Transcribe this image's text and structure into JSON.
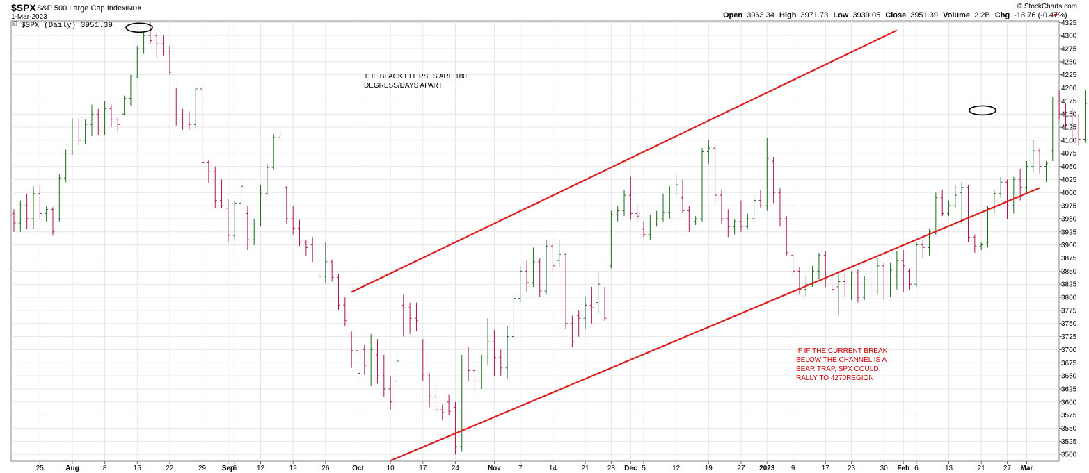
{
  "header": {
    "symbol": "$SPX",
    "name": "S&P 500 Large Cap Index",
    "exchange": "INDX",
    "date": "1-Mar-2023",
    "legend_label": "$SPX (Daily) 3951.39",
    "watermark": "© StockCharts.com",
    "open_label": "Open",
    "open_value": "3963.34",
    "high_label": "High",
    "high_value": "3971.73",
    "low_label": "Low",
    "low_value": "3939.05",
    "close_label": "Close",
    "close_value": "3951.39",
    "volume_label": "Volume",
    "volume_value": "2.2B",
    "chg_label": "Chg",
    "chg_value": "-18.76 (-0.47%)"
  },
  "chart_data": {
    "type": "bar",
    "style": "ohlc",
    "symbol": "$SPX",
    "period": "Daily",
    "up_color": "#1a6b1a",
    "down_color": "#b0124f",
    "ylim": [
      3487,
      4328
    ],
    "y_ticks": [
      3500,
      3525,
      3550,
      3575,
      3600,
      3625,
      3650,
      3675,
      3700,
      3725,
      3750,
      3775,
      3800,
      3825,
      3850,
      3875,
      3900,
      3925,
      3950,
      3975,
      4000,
      4025,
      4050,
      4075,
      4100,
      4125,
      4150,
      4175,
      4200,
      4225,
      4250,
      4275,
      4300,
      4325
    ],
    "x_tick_labels": [
      {
        "label": "25",
        "bar": 4,
        "bold": false
      },
      {
        "label": "Aug",
        "bar": 9,
        "bold": true
      },
      {
        "label": "8",
        "bar": 14,
        "bold": false
      },
      {
        "label": "15",
        "bar": 19,
        "bold": false
      },
      {
        "label": "22",
        "bar": 24,
        "bold": false
      },
      {
        "label": "29",
        "bar": 29,
        "bold": false
      },
      {
        "label": "Sep",
        "bar": 33,
        "bold": true
      },
      {
        "label": "6",
        "bar": 34,
        "bold": false
      },
      {
        "label": "12",
        "bar": 38,
        "bold": false
      },
      {
        "label": "19",
        "bar": 43,
        "bold": false
      },
      {
        "label": "26",
        "bar": 48,
        "bold": false
      },
      {
        "label": "Oct",
        "bar": 53,
        "bold": true
      },
      {
        "label": "10",
        "bar": 58,
        "bold": false
      },
      {
        "label": "17",
        "bar": 63,
        "bold": false
      },
      {
        "label": "24",
        "bar": 68,
        "bold": false
      },
      {
        "label": "Nov",
        "bar": 74,
        "bold": true
      },
      {
        "label": "7",
        "bar": 78,
        "bold": false
      },
      {
        "label": "14",
        "bar": 83,
        "bold": false
      },
      {
        "label": "21",
        "bar": 88,
        "bold": false
      },
      {
        "label": "28",
        "bar": 92,
        "bold": false
      },
      {
        "label": "Dec",
        "bar": 95,
        "bold": true
      },
      {
        "label": "5",
        "bar": 97,
        "bold": false
      },
      {
        "label": "12",
        "bar": 102,
        "bold": false
      },
      {
        "label": "19",
        "bar": 107,
        "bold": false
      },
      {
        "label": "27",
        "bar": 112,
        "bold": false
      },
      {
        "label": "2023",
        "bar": 116,
        "bold": true
      },
      {
        "label": "9",
        "bar": 120,
        "bold": false
      },
      {
        "label": "17",
        "bar": 125,
        "bold": false
      },
      {
        "label": "23",
        "bar": 129,
        "bold": false
      },
      {
        "label": "30",
        "bar": 134,
        "bold": false
      },
      {
        "label": "Feb",
        "bar": 137,
        "bold": true
      },
      {
        "label": "6",
        "bar": 139,
        "bold": false
      },
      {
        "label": "13",
        "bar": 144,
        "bold": false
      },
      {
        "label": "21",
        "bar": 149,
        "bold": false
      },
      {
        "label": "27",
        "bar": 153,
        "bold": false
      },
      {
        "label": "Mar",
        "bar": 156,
        "bold": true
      }
    ],
    "bars": [
      [
        3960,
        3968,
        3925,
        3942
      ],
      [
        3942,
        3985,
        3925,
        3975
      ],
      [
        3975,
        3998,
        3930,
        3950
      ],
      [
        3950,
        4012,
        3930,
        3998
      ],
      [
        3998,
        4015,
        3950,
        3960
      ],
      [
        3960,
        3975,
        3945,
        3968
      ],
      [
        3968,
        3972,
        3918,
        3925
      ],
      [
        3950,
        4035,
        3945,
        4028
      ],
      [
        4028,
        4082,
        4020,
        4075
      ],
      [
        4075,
        4142,
        4072,
        4135
      ],
      [
        4135,
        4140,
        4090,
        4100
      ],
      [
        4100,
        4140,
        4092,
        4130
      ],
      [
        4130,
        4168,
        4108,
        4150
      ],
      [
        4150,
        4160,
        4110,
        4118
      ],
      [
        4118,
        4175,
        4110,
        4160
      ],
      [
        4160,
        4168,
        4125,
        4140
      ],
      [
        4140,
        4145,
        4115,
        4130
      ],
      [
        4150,
        4185,
        4148,
        4180
      ],
      [
        4180,
        4225,
        4165,
        4222
      ],
      [
        4222,
        4280,
        4218,
        4275
      ],
      [
        4275,
        4305,
        4265,
        4300
      ],
      [
        4300,
        4325,
        4285,
        4290
      ],
      [
        4300,
        4305,
        4258,
        4284
      ],
      [
        4284,
        4300,
        4262,
        4270
      ],
      [
        4270,
        4280,
        4225,
        4230
      ],
      [
        4200,
        4200,
        4128,
        4140
      ],
      [
        4140,
        4160,
        4120,
        4135
      ],
      [
        4135,
        4155,
        4120,
        4130
      ],
      [
        4130,
        4200,
        4122,
        4198
      ],
      [
        4198,
        4202,
        4060,
        4058
      ],
      [
        4058,
        4062,
        4018,
        4040
      ],
      [
        4040,
        4050,
        3970,
        3985
      ],
      [
        3985,
        4025,
        3970,
        3975
      ],
      [
        3970,
        3988,
        3905,
        3918
      ],
      [
        3918,
        3985,
        3908,
        3980
      ],
      [
        3980,
        4022,
        3975,
        4012
      ],
      [
        3960,
        3975,
        3890,
        3910
      ],
      [
        3910,
        3950,
        3900,
        3940
      ],
      [
        3940,
        4015,
        3935,
        3998
      ],
      [
        3998,
        4055,
        3995,
        4048
      ],
      [
        4048,
        4112,
        4043,
        4105
      ],
      [
        4105,
        4125,
        4100,
        4110
      ],
      [
        4010,
        4012,
        3940,
        3950
      ],
      [
        3950,
        3975,
        3920,
        3932
      ],
      [
        3932,
        3948,
        3898,
        3905
      ],
      [
        3905,
        3910,
        3880,
        3895
      ],
      [
        3900,
        3915,
        3868,
        3875
      ],
      [
        3875,
        3895,
        3835,
        3840
      ],
      [
        3840,
        3905,
        3828,
        3868
      ],
      [
        3868,
        3872,
        3830,
        3838
      ],
      [
        3838,
        3845,
        3775,
        3785
      ],
      [
        3785,
        3800,
        3745,
        3756
      ],
      [
        3728,
        3735,
        3665,
        3698
      ],
      [
        3698,
        3720,
        3640,
        3655
      ],
      [
        3700,
        3710,
        3652,
        3670
      ],
      [
        3680,
        3730,
        3630,
        3700
      ],
      [
        3690,
        3720,
        3635,
        3650
      ],
      [
        3650,
        3690,
        3610,
        3625
      ],
      [
        3625,
        3650,
        3585,
        3600
      ],
      [
        3640,
        3695,
        3630,
        3678
      ],
      [
        3785,
        3805,
        3725,
        3780
      ],
      [
        3780,
        3790,
        3730,
        3760
      ],
      [
        3760,
        3790,
        3735,
        3755
      ],
      [
        3715,
        3720,
        3640,
        3650
      ],
      [
        3650,
        3655,
        3590,
        3610
      ],
      [
        3610,
        3640,
        3575,
        3585
      ],
      [
        3585,
        3595,
        3565,
        3580
      ],
      [
        3600,
        3615,
        3575,
        3582
      ],
      [
        3590,
        3600,
        3500,
        3515
      ],
      [
        3515,
        3690,
        3505,
        3680
      ],
      [
        3680,
        3705,
        3640,
        3660
      ],
      [
        3660,
        3670,
        3620,
        3640
      ],
      [
        3640,
        3690,
        3625,
        3680
      ],
      [
        3680,
        3760,
        3670,
        3715
      ],
      [
        3715,
        3738,
        3650,
        3685
      ],
      [
        3685,
        3700,
        3650,
        3665
      ],
      [
        3665,
        3745,
        3645,
        3725
      ],
      [
        3725,
        3805,
        3720,
        3798
      ],
      [
        3798,
        3860,
        3790,
        3850
      ],
      [
        3850,
        3870,
        3810,
        3828
      ],
      [
        3828,
        3895,
        3820,
        3868
      ],
      [
        3868,
        3875,
        3800,
        3812
      ],
      [
        3812,
        3910,
        3805,
        3898
      ],
      [
        3898,
        3905,
        3850,
        3860
      ],
      [
        3870,
        3910,
        3858,
        3882
      ],
      [
        3882,
        3885,
        3740,
        3750
      ],
      [
        3750,
        3765,
        3705,
        3715
      ],
      [
        3765,
        3775,
        3725,
        3760
      ],
      [
        3760,
        3800,
        3740,
        3785
      ],
      [
        3785,
        3820,
        3750,
        3780
      ],
      [
        3790,
        3850,
        3770,
        3825
      ],
      [
        3810,
        3820,
        3755,
        3760
      ],
      [
        3860,
        3965,
        3855,
        3958
      ],
      [
        3958,
        3975,
        3945,
        3965
      ],
      [
        3965,
        4005,
        3955,
        3995
      ],
      [
        3995,
        4030,
        3948,
        3960
      ],
      [
        3960,
        3975,
        3945,
        3955
      ],
      [
        3930,
        3945,
        3915,
        3920
      ],
      [
        3920,
        3958,
        3910,
        3940
      ],
      [
        3940,
        3965,
        3935,
        3950
      ],
      [
        3950,
        3998,
        3945,
        3962
      ],
      [
        3962,
        4012,
        3950,
        4005
      ],
      [
        4005,
        4035,
        3995,
        4015
      ],
      [
        3990,
        4025,
        3960,
        3965
      ],
      [
        3965,
        3975,
        3925,
        3940
      ],
      [
        3945,
        3955,
        3938,
        3950
      ],
      [
        3950,
        4085,
        3945,
        4078
      ],
      [
        4078,
        4100,
        4055,
        4085
      ],
      [
        4085,
        4090,
        3980,
        3995
      ],
      [
        3995,
        4005,
        3940,
        3950
      ],
      [
        3950,
        3968,
        3915,
        3935
      ],
      [
        3935,
        3950,
        3920,
        3945
      ],
      [
        3945,
        3985,
        3925,
        3935
      ],
      [
        3935,
        3960,
        3930,
        3950
      ],
      [
        3950,
        3995,
        3945,
        3985
      ],
      [
        3985,
        4005,
        3970,
        3975
      ],
      [
        3975,
        4105,
        3965,
        4065
      ],
      [
        4060,
        4068,
        3980,
        4000
      ],
      [
        4000,
        4008,
        3935,
        3950
      ],
      [
        3950,
        3955,
        3880,
        3885
      ],
      [
        3880,
        3885,
        3845,
        3850
      ],
      [
        3850,
        3858,
        3805,
        3815
      ],
      [
        3815,
        3840,
        3800,
        3825
      ],
      [
        3825,
        3860,
        3820,
        3850
      ],
      [
        3850,
        3885,
        3835,
        3880
      ],
      [
        3880,
        3888,
        3820,
        3835
      ],
      [
        3835,
        3850,
        3808,
        3815
      ],
      [
        3820,
        3850,
        3765,
        3830
      ],
      [
        3830,
        3845,
        3800,
        3810
      ],
      [
        3810,
        3850,
        3795,
        3848
      ],
      [
        3848,
        3853,
        3790,
        3800
      ],
      [
        3800,
        3840,
        3795,
        3835
      ],
      [
        3835,
        3860,
        3800,
        3810
      ],
      [
        3810,
        3875,
        3805,
        3860
      ],
      [
        3860,
        3865,
        3795,
        3810
      ],
      [
        3810,
        3865,
        3800,
        3852
      ],
      [
        3840,
        3888,
        3815,
        3870
      ],
      [
        3870,
        3890,
        3810,
        3860
      ],
      [
        3850,
        3855,
        3815,
        3825
      ],
      [
        3825,
        3905,
        3820,
        3900
      ],
      [
        3900,
        3910,
        3875,
        3895
      ],
      [
        3895,
        3930,
        3880,
        3925
      ],
      [
        3925,
        4000,
        3920,
        3990
      ],
      [
        3990,
        4005,
        3955,
        3960
      ],
      [
        3960,
        3985,
        3955,
        3975
      ],
      [
        3975,
        4015,
        3970,
        3995
      ],
      [
        4000,
        4020,
        3940,
        4010
      ],
      [
        4010,
        4015,
        3905,
        3915
      ],
      [
        3915,
        3920,
        3885,
        3898
      ],
      [
        3898,
        3905,
        3890,
        3900
      ],
      [
        3905,
        3975,
        3895,
        3970
      ],
      [
        3970,
        4005,
        3960,
        3998
      ],
      [
        3998,
        4030,
        3990,
        4020
      ],
      [
        4020,
        4025,
        3950,
        3975
      ],
      [
        3975,
        4030,
        3960,
        4025
      ],
      [
        4025,
        4045,
        3985,
        4010
      ],
      [
        4010,
        4060,
        4000,
        4050
      ],
      [
        4050,
        4100,
        4040,
        4080
      ],
      [
        4080,
        4085,
        4035,
        4050
      ],
      [
        4050,
        4060,
        4020,
        4055
      ],
      [
        4080,
        4182,
        4060,
        4175
      ],
      [
        4175,
        4195,
        4140,
        4150
      ],
      [
        4150,
        4170,
        4120,
        4130
      ],
      [
        4130,
        4160,
        4095,
        4110
      ],
      [
        4110,
        4150,
        4090,
        4102
      ],
      [
        4102,
        4195,
        4095,
        4170
      ],
      [
        4170,
        4175,
        4110,
        4120
      ],
      [
        4120,
        4155,
        4085,
        4100
      ],
      [
        4100,
        4112,
        4065,
        4075
      ],
      [
        4075,
        4100,
        4065,
        4090
      ],
      [
        4090,
        4142,
        4085,
        4138
      ],
      [
        4138,
        4150,
        4095,
        4105
      ],
      [
        4105,
        4160,
        4100,
        4145
      ],
      [
        4135,
        4140,
        4090,
        4100
      ],
      [
        4100,
        4110,
        4040,
        4075
      ],
      [
        4075,
        4090,
        4040,
        4050
      ],
      [
        4050,
        4065,
        3995,
        4000
      ],
      [
        4000,
        4010,
        3975,
        3990
      ],
      [
        3995,
        4015,
        3960,
        4000
      ],
      [
        4000,
        4035,
        3965,
        4010
      ],
      [
        4010,
        4015,
        3945,
        3965
      ],
      [
        3965,
        4020,
        3960,
        3990
      ],
      [
        3990,
        4025,
        3975,
        3985
      ],
      [
        3985,
        4005,
        3950,
        3970
      ],
      [
        3963,
        3972,
        3939,
        3951
      ]
    ],
    "channel_lines": [
      {
        "name": "upper",
        "color": "#e11a1a",
        "start": {
          "bar": 52,
          "price": 3810
        },
        "end": {
          "bar": 136,
          "price": 4310
        }
      },
      {
        "name": "lower",
        "color": "#e11a1a",
        "start": {
          "bar": 58,
          "price": 3488
        },
        "end": {
          "bar": 158,
          "price": 4009
        }
      }
    ],
    "ellipses": [
      {
        "bar": 19.3,
        "price": 4315
      },
      {
        "bar": 149.2,
        "price": 4157
      }
    ],
    "annotations": [
      {
        "text": "THE BLACK ELLIPSES ARE 180 DEGRESS/DAYS APART",
        "color": "#000000"
      },
      {
        "text": "IF IF THE CURRENT BREAK BELOW THE CHANNEL IS A BEAR TRAP, SPX COULD RALLY TO 4270REGION",
        "color": "#d00000"
      }
    ]
  },
  "annotations": {
    "black_note": [
      "THE BLACK ELLIPSES ARE 180",
      "DEGRESS/DAYS APART"
    ],
    "red_note": [
      "IF IF THE CURRENT BREAK",
      "BELOW THE CHANNEL IS A",
      "BEAR TRAP, SPX COULD",
      "RALLY TO 4270REGION"
    ]
  }
}
